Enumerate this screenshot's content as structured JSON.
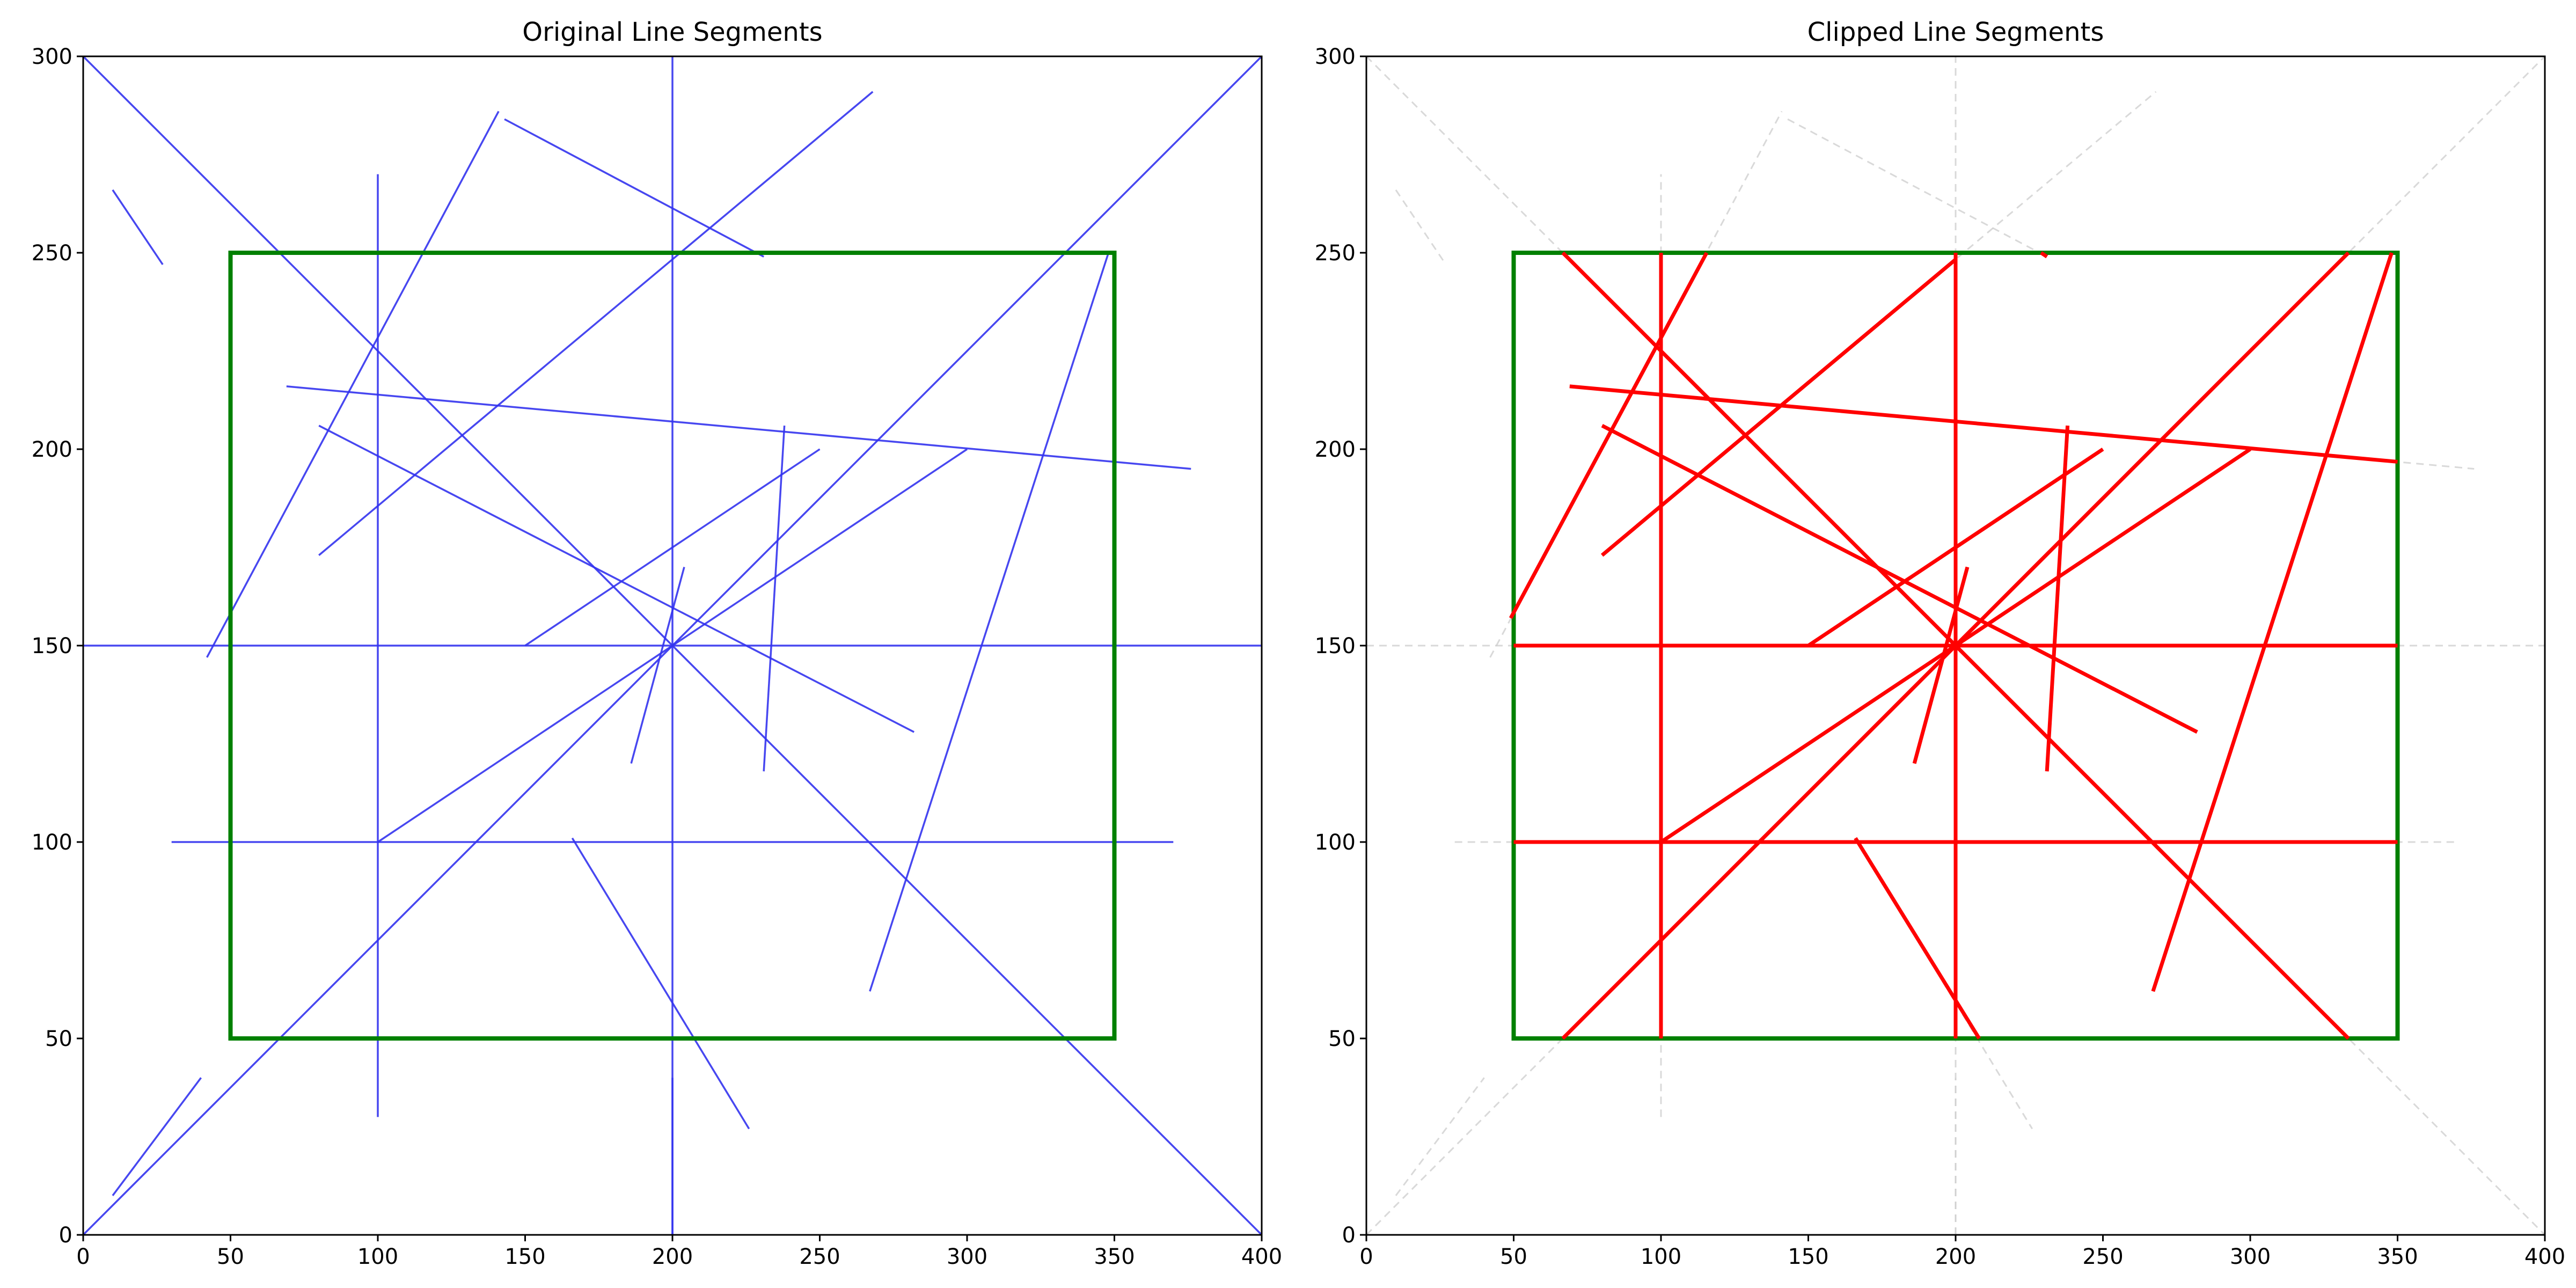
{
  "chart_data": [
    {
      "type": "line",
      "title": "Original Line Segments",
      "xlabel": "",
      "ylabel": "",
      "xlim": [
        0,
        400
      ],
      "ylim": [
        0,
        300
      ],
      "xticks": [
        "0",
        "50",
        "100",
        "150",
        "200",
        "250",
        "300",
        "350",
        "400"
      ],
      "yticks": [
        "0",
        "50",
        "100",
        "150",
        "200",
        "250",
        "300"
      ],
      "clip_window": {
        "xmin": 50,
        "ymin": 50,
        "xmax": 350,
        "ymax": 250,
        "color": "#008000"
      },
      "segment_color": "#3333ee",
      "segments": [
        [
          0,
          300,
          400,
          0
        ],
        [
          0,
          0,
          400,
          300
        ],
        [
          0,
          150,
          400,
          150
        ],
        [
          200,
          0,
          200,
          300
        ],
        [
          30,
          100,
          370,
          100
        ],
        [
          100,
          30,
          100,
          270
        ],
        [
          69,
          216,
          376,
          195
        ],
        [
          80,
          206,
          282,
          128
        ],
        [
          42,
          147,
          141,
          286
        ],
        [
          80,
          173,
          268,
          291
        ],
        [
          143,
          284,
          231,
          249
        ],
        [
          150,
          150,
          250,
          200
        ],
        [
          100,
          100,
          300,
          200
        ],
        [
          186,
          120,
          204,
          170
        ],
        [
          231,
          118,
          238,
          206
        ],
        [
          166,
          101,
          226,
          27
        ],
        [
          267,
          62,
          348,
          250
        ],
        [
          10,
          266,
          27,
          247
        ],
        [
          10,
          10,
          40,
          40
        ],
        [
          200,
          0,
          200,
          40
        ]
      ]
    },
    {
      "type": "line",
      "title": "Clipped Line Segments",
      "xlabel": "",
      "ylabel": "",
      "xlim": [
        0,
        400
      ],
      "ylim": [
        0,
        300
      ],
      "xticks": [
        "0",
        "50",
        "100",
        "150",
        "200",
        "250",
        "300",
        "350",
        "400"
      ],
      "yticks": [
        "0",
        "50",
        "100",
        "150",
        "200",
        "250",
        "300"
      ],
      "clip_window": {
        "xmin": 50,
        "ymin": 50,
        "xmax": 350,
        "ymax": 250,
        "color": "#008000"
      },
      "ghost_color": "#cccccc",
      "clipped_color": "#ff0000",
      "segments": [
        [
          0,
          300,
          400,
          0
        ],
        [
          0,
          0,
          400,
          300
        ],
        [
          0,
          150,
          400,
          150
        ],
        [
          200,
          0,
          200,
          300
        ],
        [
          30,
          100,
          370,
          100
        ],
        [
          100,
          30,
          100,
          270
        ],
        [
          69,
          216,
          376,
          195
        ],
        [
          80,
          206,
          282,
          128
        ],
        [
          42,
          147,
          141,
          286
        ],
        [
          80,
          173,
          268,
          291
        ],
        [
          143,
          284,
          231,
          249
        ],
        [
          150,
          150,
          250,
          200
        ],
        [
          100,
          100,
          300,
          200
        ],
        [
          186,
          120,
          204,
          170
        ],
        [
          231,
          118,
          238,
          206
        ],
        [
          166,
          101,
          226,
          27
        ],
        [
          267,
          62,
          348,
          250
        ],
        [
          10,
          266,
          27,
          247
        ],
        [
          10,
          10,
          40,
          40
        ],
        [
          200,
          0,
          200,
          40
        ]
      ],
      "clipped_segments": [
        [
          66.67,
          250,
          333.33,
          50
        ],
        [
          66.67,
          50,
          333.33,
          250
        ],
        [
          50,
          150,
          350,
          150
        ],
        [
          200,
          50,
          200,
          250
        ],
        [
          50,
          100,
          350,
          100
        ],
        [
          100,
          50,
          100,
          250
        ],
        [
          69,
          216,
          350,
          196.8
        ],
        [
          80,
          206,
          282,
          128
        ],
        [
          49,
          157,
          115.5,
          250
        ],
        [
          80,
          173,
          200,
          248.3
        ],
        [
          229,
          250,
          231,
          249
        ],
        [
          150,
          150,
          250,
          200
        ],
        [
          100,
          100,
          300,
          200
        ],
        [
          186,
          120,
          204,
          170
        ],
        [
          231,
          118,
          238,
          206
        ],
        [
          166,
          101,
          208,
          50
        ],
        [
          267,
          62,
          348,
          250
        ]
      ]
    }
  ]
}
